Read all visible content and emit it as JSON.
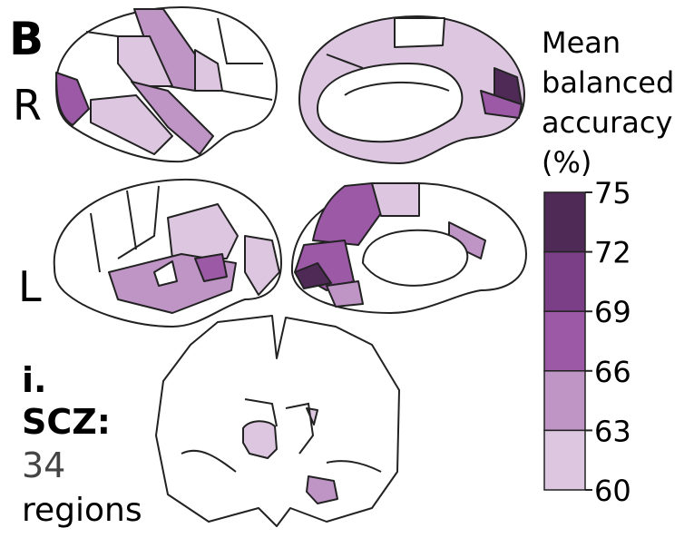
{
  "panel": "B",
  "rows": [
    {
      "label": "R"
    },
    {
      "label": "L"
    }
  ],
  "caption": {
    "index": "i.",
    "disorder": "SCZ:",
    "count": "34",
    "unit": "regions"
  },
  "colorbar": {
    "title": [
      "Mean",
      "balanced",
      "accuracy",
      "(%)"
    ],
    "ticks": [
      75,
      72,
      69,
      66,
      63,
      60
    ],
    "colors": [
      "#4f2a56",
      "#7a3f86",
      "#9b59a6",
      "#bf95c6",
      "#dcc6e0"
    ]
  }
}
